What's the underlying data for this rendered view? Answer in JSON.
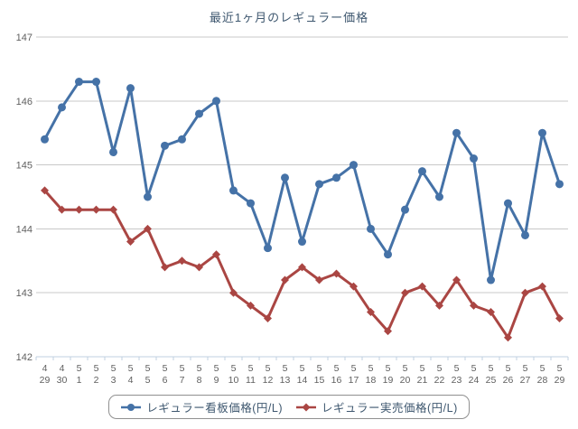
{
  "chart_data": {
    "type": "line",
    "title": "最近1ヶ月のレギュラー価格",
    "categories": [
      "4/29",
      "4/30",
      "5/1",
      "5/2",
      "5/3",
      "5/4",
      "5/5",
      "5/6",
      "5/7",
      "5/8",
      "5/9",
      "5/10",
      "5/11",
      "5/12",
      "5/13",
      "5/14",
      "5/15",
      "5/16",
      "5/17",
      "5/18",
      "5/19",
      "5/20",
      "5/21",
      "5/22",
      "5/23",
      "5/24",
      "5/25",
      "5/26",
      "5/27",
      "5/28",
      "5/29"
    ],
    "categories_month": [
      "4",
      "4",
      "5",
      "5",
      "5",
      "5",
      "5",
      "5",
      "5",
      "5",
      "5",
      "5",
      "5",
      "5",
      "5",
      "5",
      "5",
      "5",
      "5",
      "5",
      "5",
      "5",
      "5",
      "5",
      "5",
      "5",
      "5",
      "5",
      "5",
      "5",
      "5"
    ],
    "categories_day": [
      "29",
      "30",
      "1",
      "2",
      "3",
      "4",
      "5",
      "6",
      "7",
      "8",
      "9",
      "10",
      "11",
      "12",
      "13",
      "14",
      "15",
      "16",
      "17",
      "18",
      "19",
      "20",
      "21",
      "22",
      "23",
      "24",
      "25",
      "26",
      "27",
      "28",
      "29"
    ],
    "series": [
      {
        "name": "レギュラー看板価格(円/L)",
        "color": "#4572A7",
        "marker": "circle",
        "values": [
          145.4,
          145.9,
          146.3,
          146.3,
          145.2,
          146.2,
          144.5,
          145.3,
          145.4,
          145.8,
          146.0,
          144.6,
          144.4,
          143.7,
          144.8,
          143.8,
          144.7,
          144.8,
          145.0,
          144.0,
          143.6,
          144.3,
          144.9,
          144.5,
          145.5,
          145.1,
          143.2,
          144.4,
          143.9,
          145.5,
          144.7
        ]
      },
      {
        "name": "レギュラー実売価格(円/L)",
        "color": "#AA4643",
        "marker": "diamond",
        "values": [
          144.6,
          144.3,
          144.3,
          144.3,
          144.3,
          143.8,
          144.0,
          143.4,
          143.5,
          143.4,
          143.6,
          143.0,
          142.8,
          142.6,
          143.2,
          143.4,
          143.2,
          143.3,
          143.1,
          142.7,
          142.4,
          143.0,
          143.1,
          142.8,
          143.2,
          142.8,
          142.7,
          142.3,
          143.0,
          143.1,
          142.6
        ]
      }
    ],
    "ylim": [
      142,
      147
    ],
    "yticks": [
      147,
      146,
      145,
      144,
      143,
      142
    ],
    "grid": true,
    "legend_position": "bottom-center"
  },
  "colors": {
    "title": "#3E576F",
    "grid_line": "#C8C8C8",
    "axis_line": "#C0D0E0",
    "axis_label": "#606060",
    "legend_border": "#909090",
    "legend_text": "#3E576F"
  }
}
